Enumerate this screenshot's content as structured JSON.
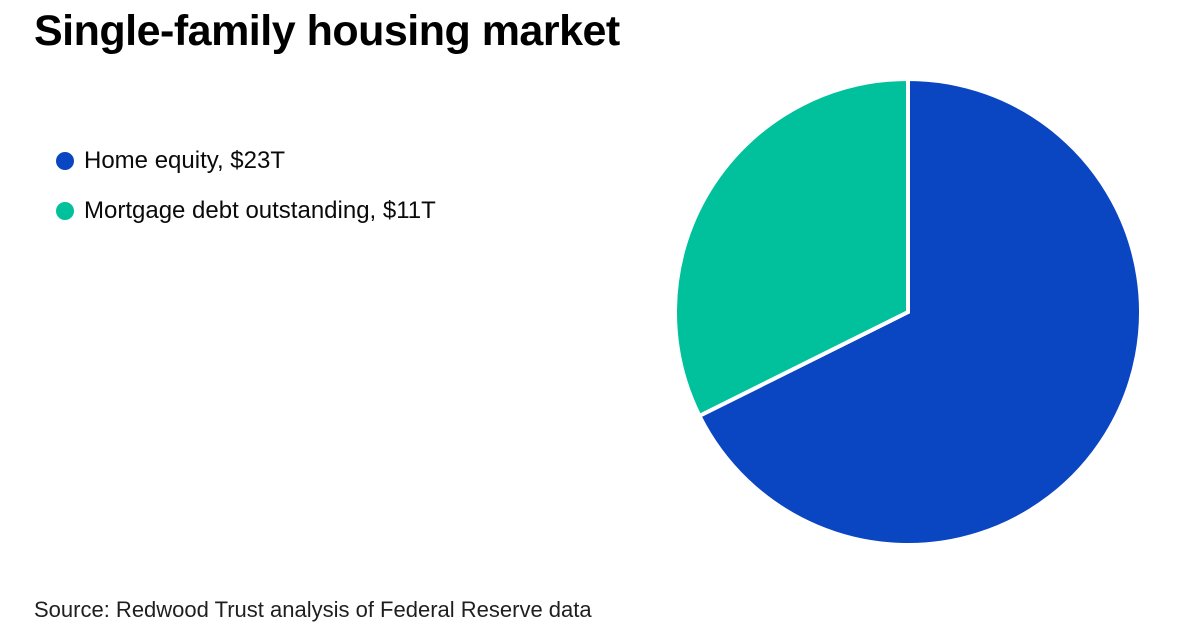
{
  "header": {
    "title": "Single-family housing market"
  },
  "footer": {
    "source": "Source: Redwood Trust analysis of Federal Reserve data"
  },
  "colors": {
    "background": "#ffffff",
    "title_text": "#000000",
    "legend_text": "#0a0a0a",
    "source_text": "#1f1f1f",
    "home_equity_blue": "#0a45c2",
    "mortgage_debt_teal": "#00c19c"
  },
  "chart_data": {
    "type": "pie",
    "title": "Single-family housing market",
    "slices": [
      {
        "label": "Home equity",
        "value": 23,
        "display_value": "$23T",
        "legend_label": "Home equity, $23T",
        "color": "#0a45c2",
        "share_pct": 67.6
      },
      {
        "label": "Mortgage debt outstanding",
        "value": 11,
        "display_value": "$11T",
        "legend_label": "Mortgage debt outstanding, $11T",
        "color": "#00c19c",
        "share_pct": 32.4
      }
    ],
    "total": 34,
    "start_angle_deg": 0,
    "direction": "clockwise",
    "divider_color": "#ffffff",
    "legend_position": "left",
    "source": "Source: Redwood Trust analysis of Federal Reserve data"
  }
}
